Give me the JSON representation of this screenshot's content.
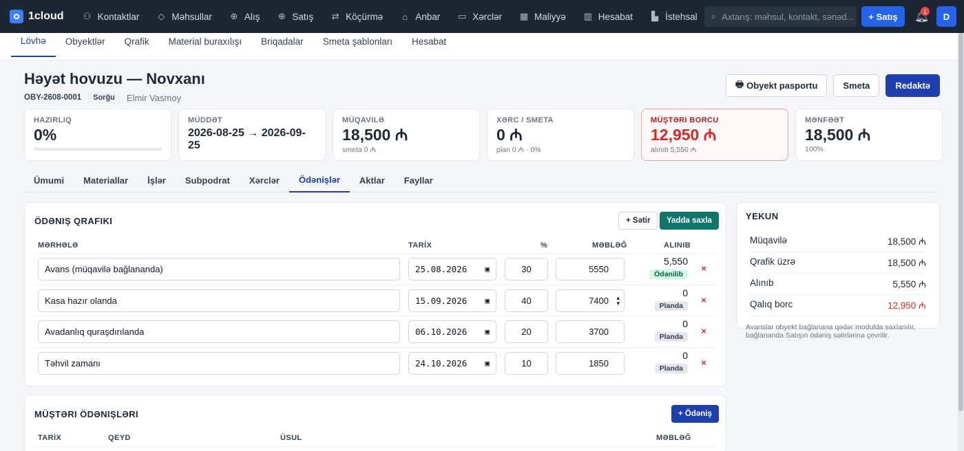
{
  "app": {
    "name": "1cloud"
  },
  "nav": [
    {
      "label": "Kontaktlar",
      "icon": "contacts-icon",
      "glyph": "⚇"
    },
    {
      "label": "Məhsullar",
      "icon": "box-icon",
      "glyph": "◇"
    },
    {
      "label": "Alış",
      "icon": "purchase-icon",
      "glyph": "⊕"
    },
    {
      "label": "Satış",
      "icon": "sale-icon",
      "glyph": "⊕"
    },
    {
      "label": "Köçürmə",
      "icon": "transfer-icon",
      "glyph": "⇄"
    },
    {
      "label": "Anbar",
      "icon": "warehouse-icon",
      "glyph": "⌂"
    },
    {
      "label": "Xərclər",
      "icon": "expenses-icon",
      "glyph": "▭"
    },
    {
      "label": "Maliyyə",
      "icon": "finance-icon",
      "glyph": "▦"
    },
    {
      "label": "Hesabat",
      "icon": "report-icon",
      "glyph": "▥"
    },
    {
      "label": "İstehsal",
      "icon": "production-icon",
      "glyph": "▙"
    }
  ],
  "search": {
    "placeholder": "Axtarış: məhsul, kontakt, sənəd..."
  },
  "topbar": {
    "sale_button": "+ Satış",
    "notifications": "1",
    "avatar": "D"
  },
  "subnav": [
    {
      "label": "Lövhə",
      "active": true
    },
    {
      "label": "Obyektlər"
    },
    {
      "label": "Qrafik"
    },
    {
      "label": "Material buraxılışı"
    },
    {
      "label": "Briqadalar"
    },
    {
      "label": "Smeta şablonları"
    },
    {
      "label": "Hesabat"
    }
  ],
  "object": {
    "title": "Həyət hovuzu — Novxanı",
    "code": "OBY-2608-0001",
    "status": "Sorğu",
    "owner": "Elmir Vasmoy"
  },
  "header_buttons": {
    "passport": "Obyekt pasportu",
    "estimate": "Smeta",
    "edit": "Redaktə"
  },
  "cards": {
    "readiness": {
      "label": "Hazırlıq",
      "value": "0%",
      "progress": 0
    },
    "period": {
      "label": "Müddət",
      "value": "2026-08-25 → 2026-09-25"
    },
    "contract": {
      "label": "Müqavilə",
      "value": "18,500 ₼",
      "sub": "smeta 0 ₼"
    },
    "cost": {
      "label": "Xərc / smeta",
      "value": "0 ₼",
      "sub": "plan 0 ₼ · 0%"
    },
    "debt": {
      "label": "Müştəri borcu",
      "value": "12,950 ₼",
      "sub": "alınıb 5,550 ₼"
    },
    "profit": {
      "label": "Mənfəət",
      "value": "18,500 ₼",
      "sub": "100%"
    }
  },
  "tabs": [
    {
      "label": "Ümumi"
    },
    {
      "label": "Materiallar"
    },
    {
      "label": "İşlər"
    },
    {
      "label": "Subpodrat"
    },
    {
      "label": "Xərclər"
    },
    {
      "label": "Ödənişlər",
      "active": true
    },
    {
      "label": "Aktlar"
    },
    {
      "label": "Fayllar"
    }
  ],
  "schedule": {
    "title": "Ödəniş qrafiki",
    "add_row": "+ Sətir",
    "save": "Yadda saxla",
    "columns": {
      "stage": "MƏRHƏLƏ",
      "date": "TARİX",
      "percent": "%",
      "amount": "MƏBLƏĞ",
      "received": "ALINIB"
    },
    "rows": [
      {
        "stage": "Avans (müqavilə bağlananda)",
        "date": "25.08.2026",
        "percent": "30",
        "amount": "5550",
        "received": "5,550",
        "status": "Ödənilib",
        "paid": true
      },
      {
        "stage": "Kasa hazır olanda",
        "date": "15.09.2026",
        "percent": "40",
        "amount": "7400",
        "received": "0",
        "status": "Planda",
        "paid": false
      },
      {
        "stage": "Avadanlıq quraşdırılanda",
        "date": "06.10.2026",
        "percent": "20",
        "amount": "3700",
        "received": "0",
        "status": "Planda",
        "paid": false
      },
      {
        "stage": "Təhvil zamanı",
        "date": "24.10.2026",
        "percent": "10",
        "amount": "1850",
        "received": "0",
        "status": "Planda",
        "paid": false
      }
    ]
  },
  "summary": {
    "title": "Yekun",
    "rows": [
      {
        "label": "Müqavilə",
        "value": "18,500 ₼"
      },
      {
        "label": "Qrafik üzrə",
        "value": "18,500 ₼"
      },
      {
        "label": "Alınıb",
        "value": "5,550 ₼"
      },
      {
        "label": "Qalıq borc",
        "value": "12,950 ₼",
        "debt": true
      }
    ],
    "note": "Avanslar obyekt bağlanana qədər modulda saxlanılır, bağlananda Satışın ödəniş sətirlərinə çevrilir."
  },
  "client_payments": {
    "title": "Müştəri ödənişləri",
    "add": "+ Ödəniş",
    "columns": {
      "date": "TARİX",
      "note": "QEYD",
      "method": "ÜSUL",
      "amount": "MƏBLƏĞ"
    }
  }
}
